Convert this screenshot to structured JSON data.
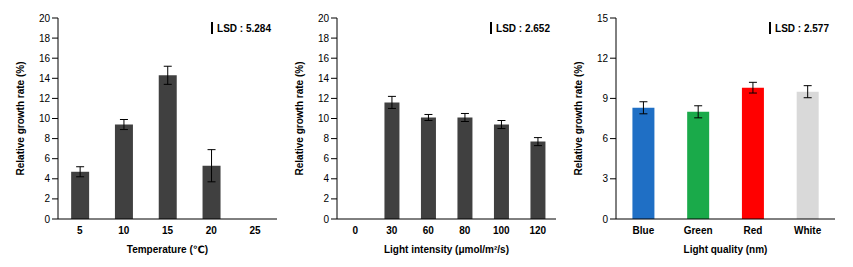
{
  "chart_data": [
    {
      "type": "bar",
      "x_label": "Temperature (℃)",
      "y_label": "Relative growth rate (%)",
      "annotation": "LSD : 5.284",
      "categories": [
        "5",
        "10",
        "15",
        "20",
        "25"
      ],
      "values": [
        4.7,
        9.4,
        14.3,
        5.3,
        0
      ],
      "errors": [
        0.5,
        0.5,
        0.9,
        1.6,
        0
      ],
      "color": "#404040",
      "ylim": [
        0,
        20
      ],
      "yticks": [
        0,
        2,
        4,
        6,
        8,
        10,
        12,
        14,
        16,
        18,
        20
      ]
    },
    {
      "type": "bar",
      "x_label": "Light intensity (μmol/m²/s)",
      "y_label": "Relative growth rate (%)",
      "annotation": "LSD : 2.652",
      "categories": [
        "0",
        "30",
        "60",
        "80",
        "100",
        "120"
      ],
      "values": [
        0,
        11.6,
        10.1,
        10.1,
        9.4,
        7.7
      ],
      "errors": [
        0,
        0.6,
        0.3,
        0.4,
        0.4,
        0.4
      ],
      "color": "#404040",
      "ylim": [
        0,
        20
      ],
      "yticks": [
        0,
        2,
        4,
        6,
        8,
        10,
        12,
        14,
        16,
        18,
        20
      ]
    },
    {
      "type": "bar",
      "x_label": "Light quality (nm)",
      "y_label": "Relative growth rate (%)",
      "annotation": "LSD : 2.577",
      "categories": [
        "Blue",
        "Green",
        "Red",
        "White"
      ],
      "values": [
        8.3,
        8.0,
        9.8,
        9.5
      ],
      "errors": [
        0.45,
        0.45,
        0.4,
        0.45
      ],
      "colors": [
        "#1f6fc5",
        "#1aaa4a",
        "#ff0000",
        "#d9d9d9"
      ],
      "ylim": [
        0,
        15
      ],
      "yticks": [
        0,
        3,
        6,
        9,
        12,
        15
      ]
    }
  ]
}
